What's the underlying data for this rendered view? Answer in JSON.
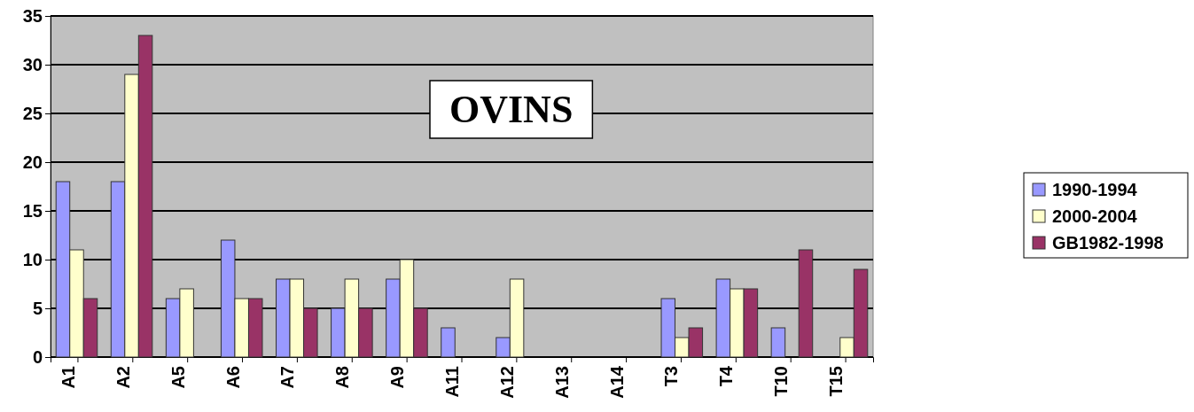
{
  "chart_data": {
    "type": "bar",
    "title": "OVINS",
    "categories": [
      "A1",
      "A2",
      "A5",
      "A6",
      "A7",
      "A8",
      "A9",
      "A11",
      "A12",
      "A13",
      "A14",
      "T3",
      "T4",
      "T10",
      "T15"
    ],
    "series": [
      {
        "name": "1990-1994",
        "color": "#9999ff",
        "values": [
          18,
          18,
          6,
          12,
          8,
          5,
          8,
          3,
          2,
          0,
          0,
          6,
          8,
          3,
          0
        ]
      },
      {
        "name": "2000-2004",
        "color": "#ffffcc",
        "values": [
          11,
          29,
          7,
          6,
          8,
          8,
          10,
          0,
          8,
          0,
          0,
          2,
          7,
          0,
          2
        ]
      },
      {
        "name": "GB1982-1998",
        "color": "#993366",
        "values": [
          6,
          33,
          0,
          6,
          5,
          5,
          5,
          0,
          0,
          0,
          0,
          3,
          7,
          11,
          9
        ]
      }
    ],
    "ylim": [
      0,
      35
    ],
    "yticks": [
      0,
      5,
      10,
      15,
      20,
      25,
      30,
      35
    ],
    "grid": "y",
    "legend": "right"
  }
}
